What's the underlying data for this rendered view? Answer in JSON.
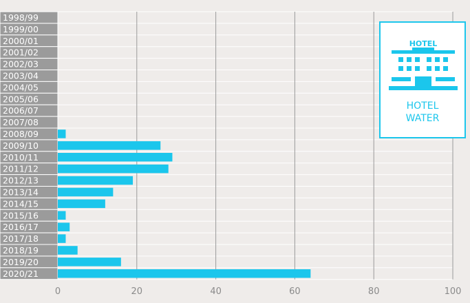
{
  "chart_data": {
    "type": "bar",
    "orientation": "horizontal",
    "categories": [
      "1998/99",
      "1999/00",
      "2000/01",
      "2001/02",
      "2002/03",
      "2003/04",
      "2004/05",
      "2005/06",
      "2006/07",
      "2007/08",
      "2008/09",
      "2009/10",
      "2010/11",
      "2011/12",
      "2012/13",
      "2013/14",
      "2014/15",
      "2015/16",
      "2016/17",
      "2017/18",
      "2018/19",
      "2019/20",
      "2020/21"
    ],
    "values": [
      0,
      0,
      0,
      0,
      0,
      0,
      0,
      0,
      0,
      0,
      2,
      26,
      29,
      28,
      19,
      14,
      12,
      2,
      3,
      2,
      5,
      16,
      64
    ],
    "xlim": [
      0,
      100
    ],
    "xticks": [
      0,
      20,
      40,
      60,
      80,
      100
    ],
    "grid": "vertical",
    "title": "",
    "xlabel": "",
    "ylabel": ""
  },
  "colors": {
    "bar": "#1bc6ec",
    "category_band": "#9b9b9b",
    "background": "#efecea",
    "grid": "#9a9a9a"
  },
  "badge": {
    "icon": "hotel-building-icon",
    "sign_text": "HOTEL",
    "caption_line1": "HOTEL",
    "caption_line2": "WATER"
  }
}
